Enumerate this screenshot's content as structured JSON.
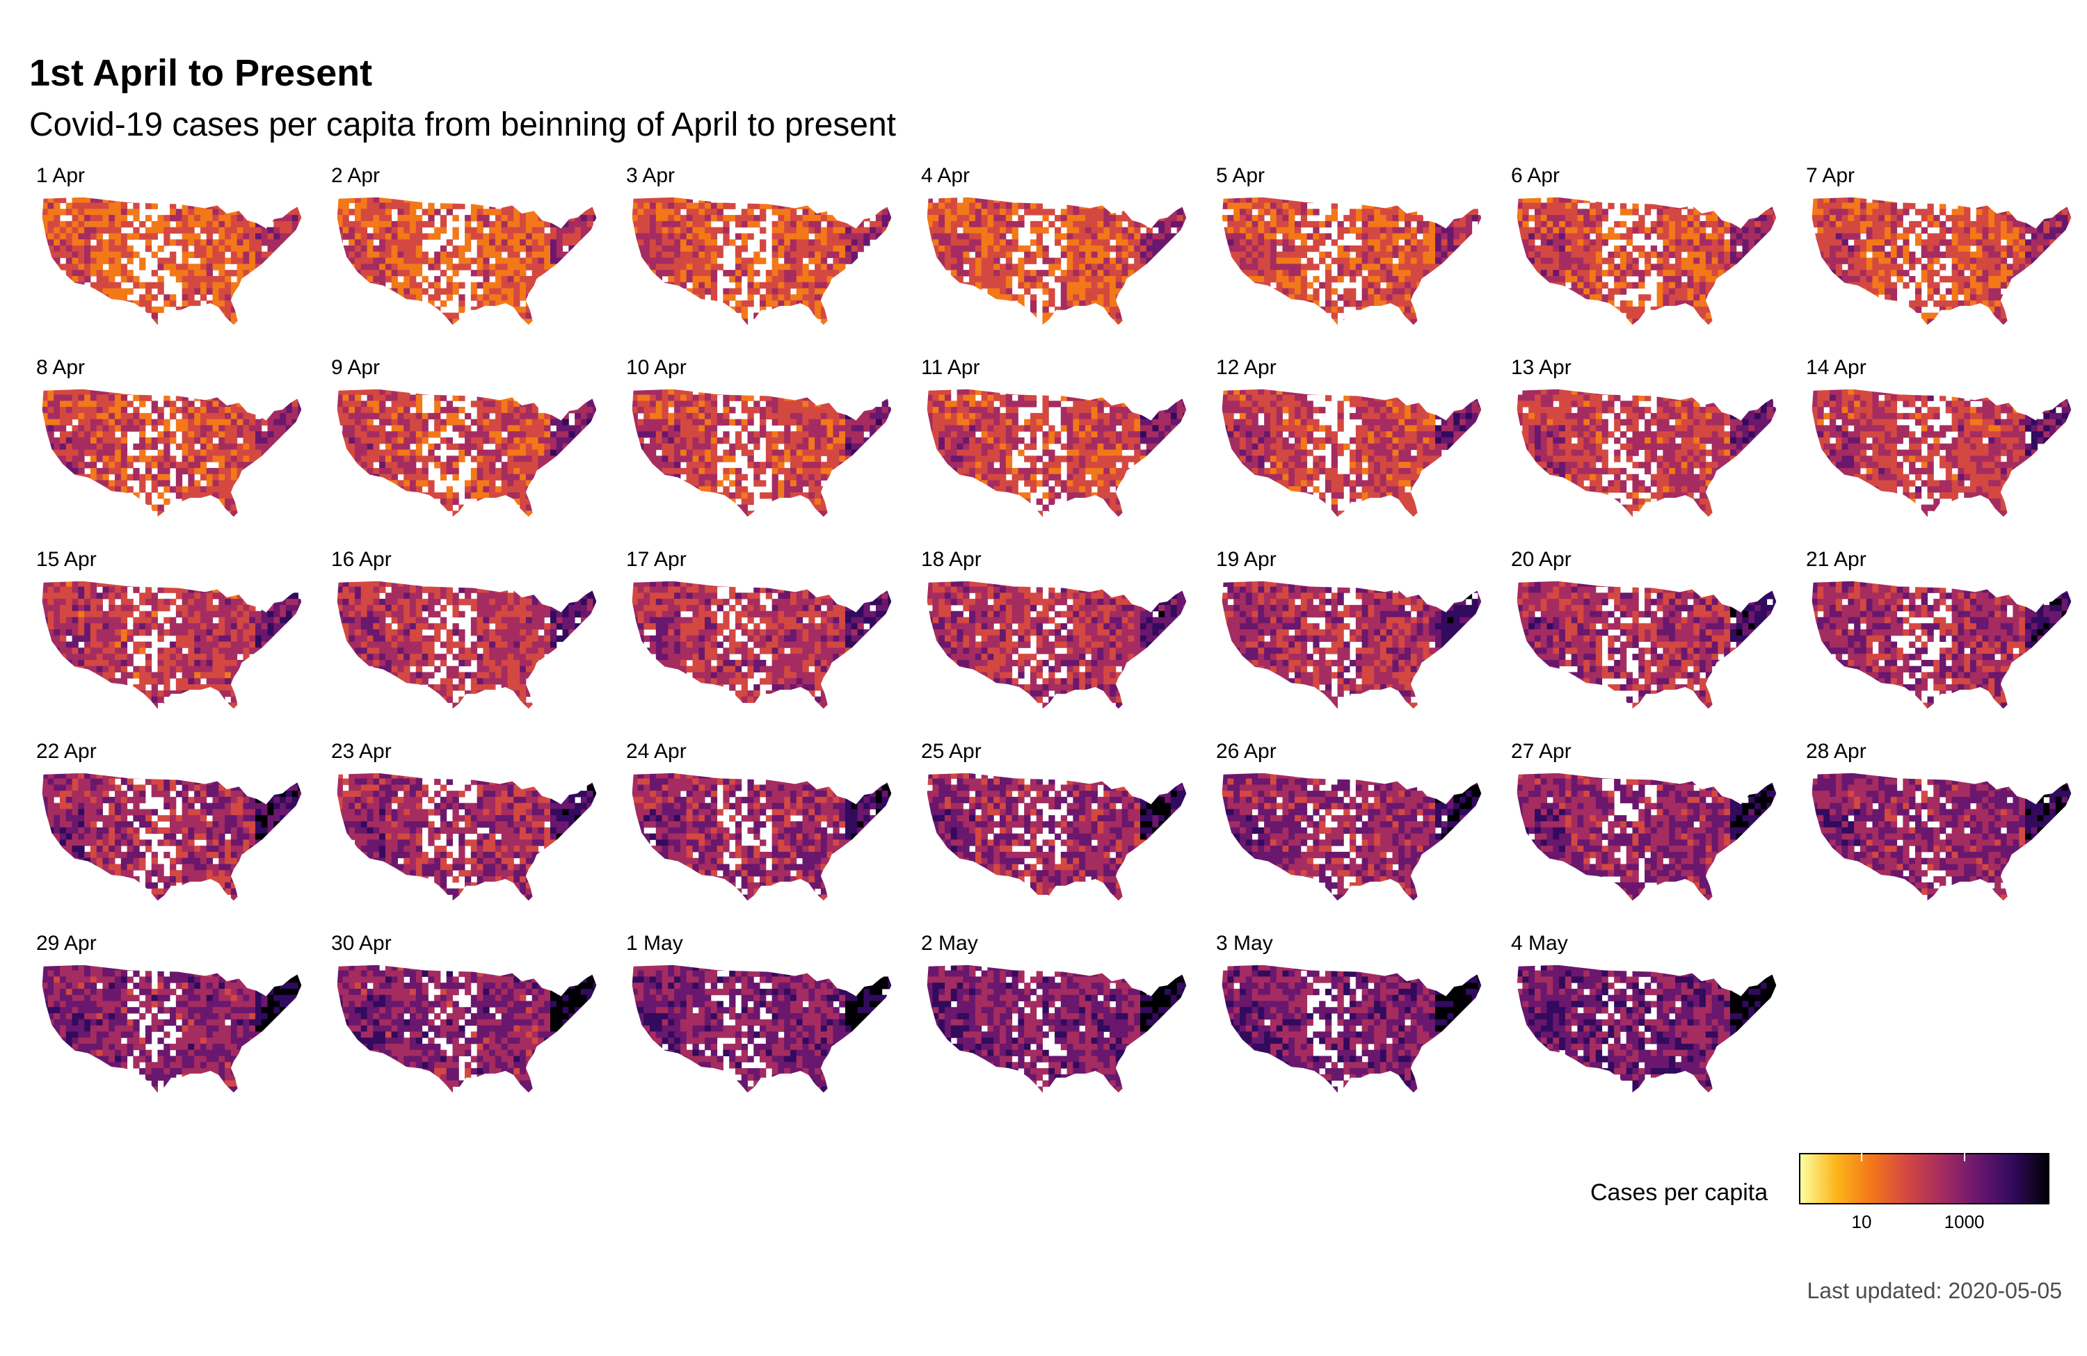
{
  "title": "1st April to Present",
  "subtitle": "Covid-19 cases per capita from beinning of April to present",
  "panels": [
    {
      "date": "1 Apr"
    },
    {
      "date": "2 Apr"
    },
    {
      "date": "3 Apr"
    },
    {
      "date": "4 Apr"
    },
    {
      "date": "5 Apr"
    },
    {
      "date": "6 Apr"
    },
    {
      "date": "7 Apr"
    },
    {
      "date": "8 Apr"
    },
    {
      "date": "9 Apr"
    },
    {
      "date": "10 Apr"
    },
    {
      "date": "11 Apr"
    },
    {
      "date": "12 Apr"
    },
    {
      "date": "13 Apr"
    },
    {
      "date": "14 Apr"
    },
    {
      "date": "15 Apr"
    },
    {
      "date": "16 Apr"
    },
    {
      "date": "17 Apr"
    },
    {
      "date": "18 Apr"
    },
    {
      "date": "19 Apr"
    },
    {
      "date": "20 Apr"
    },
    {
      "date": "21 Apr"
    },
    {
      "date": "22 Apr"
    },
    {
      "date": "23 Apr"
    },
    {
      "date": "24 Apr"
    },
    {
      "date": "25 Apr"
    },
    {
      "date": "26 Apr"
    },
    {
      "date": "27 Apr"
    },
    {
      "date": "28 Apr"
    },
    {
      "date": "29 Apr"
    },
    {
      "date": "30 Apr"
    },
    {
      "date": "1 May"
    },
    {
      "date": "2 May"
    },
    {
      "date": "3 May"
    },
    {
      "date": "4 May"
    }
  ],
  "legend": {
    "title": "Cases per capita",
    "scale": "log",
    "ticks": [
      "10",
      "1000"
    ],
    "colors": [
      "#fcffa4",
      "#fbb61a",
      "#f37819",
      "#d44842",
      "#a52c60",
      "#6a176e",
      "#320a5e",
      "#000004"
    ]
  },
  "footer": "Last updated: 2020-05-05"
}
